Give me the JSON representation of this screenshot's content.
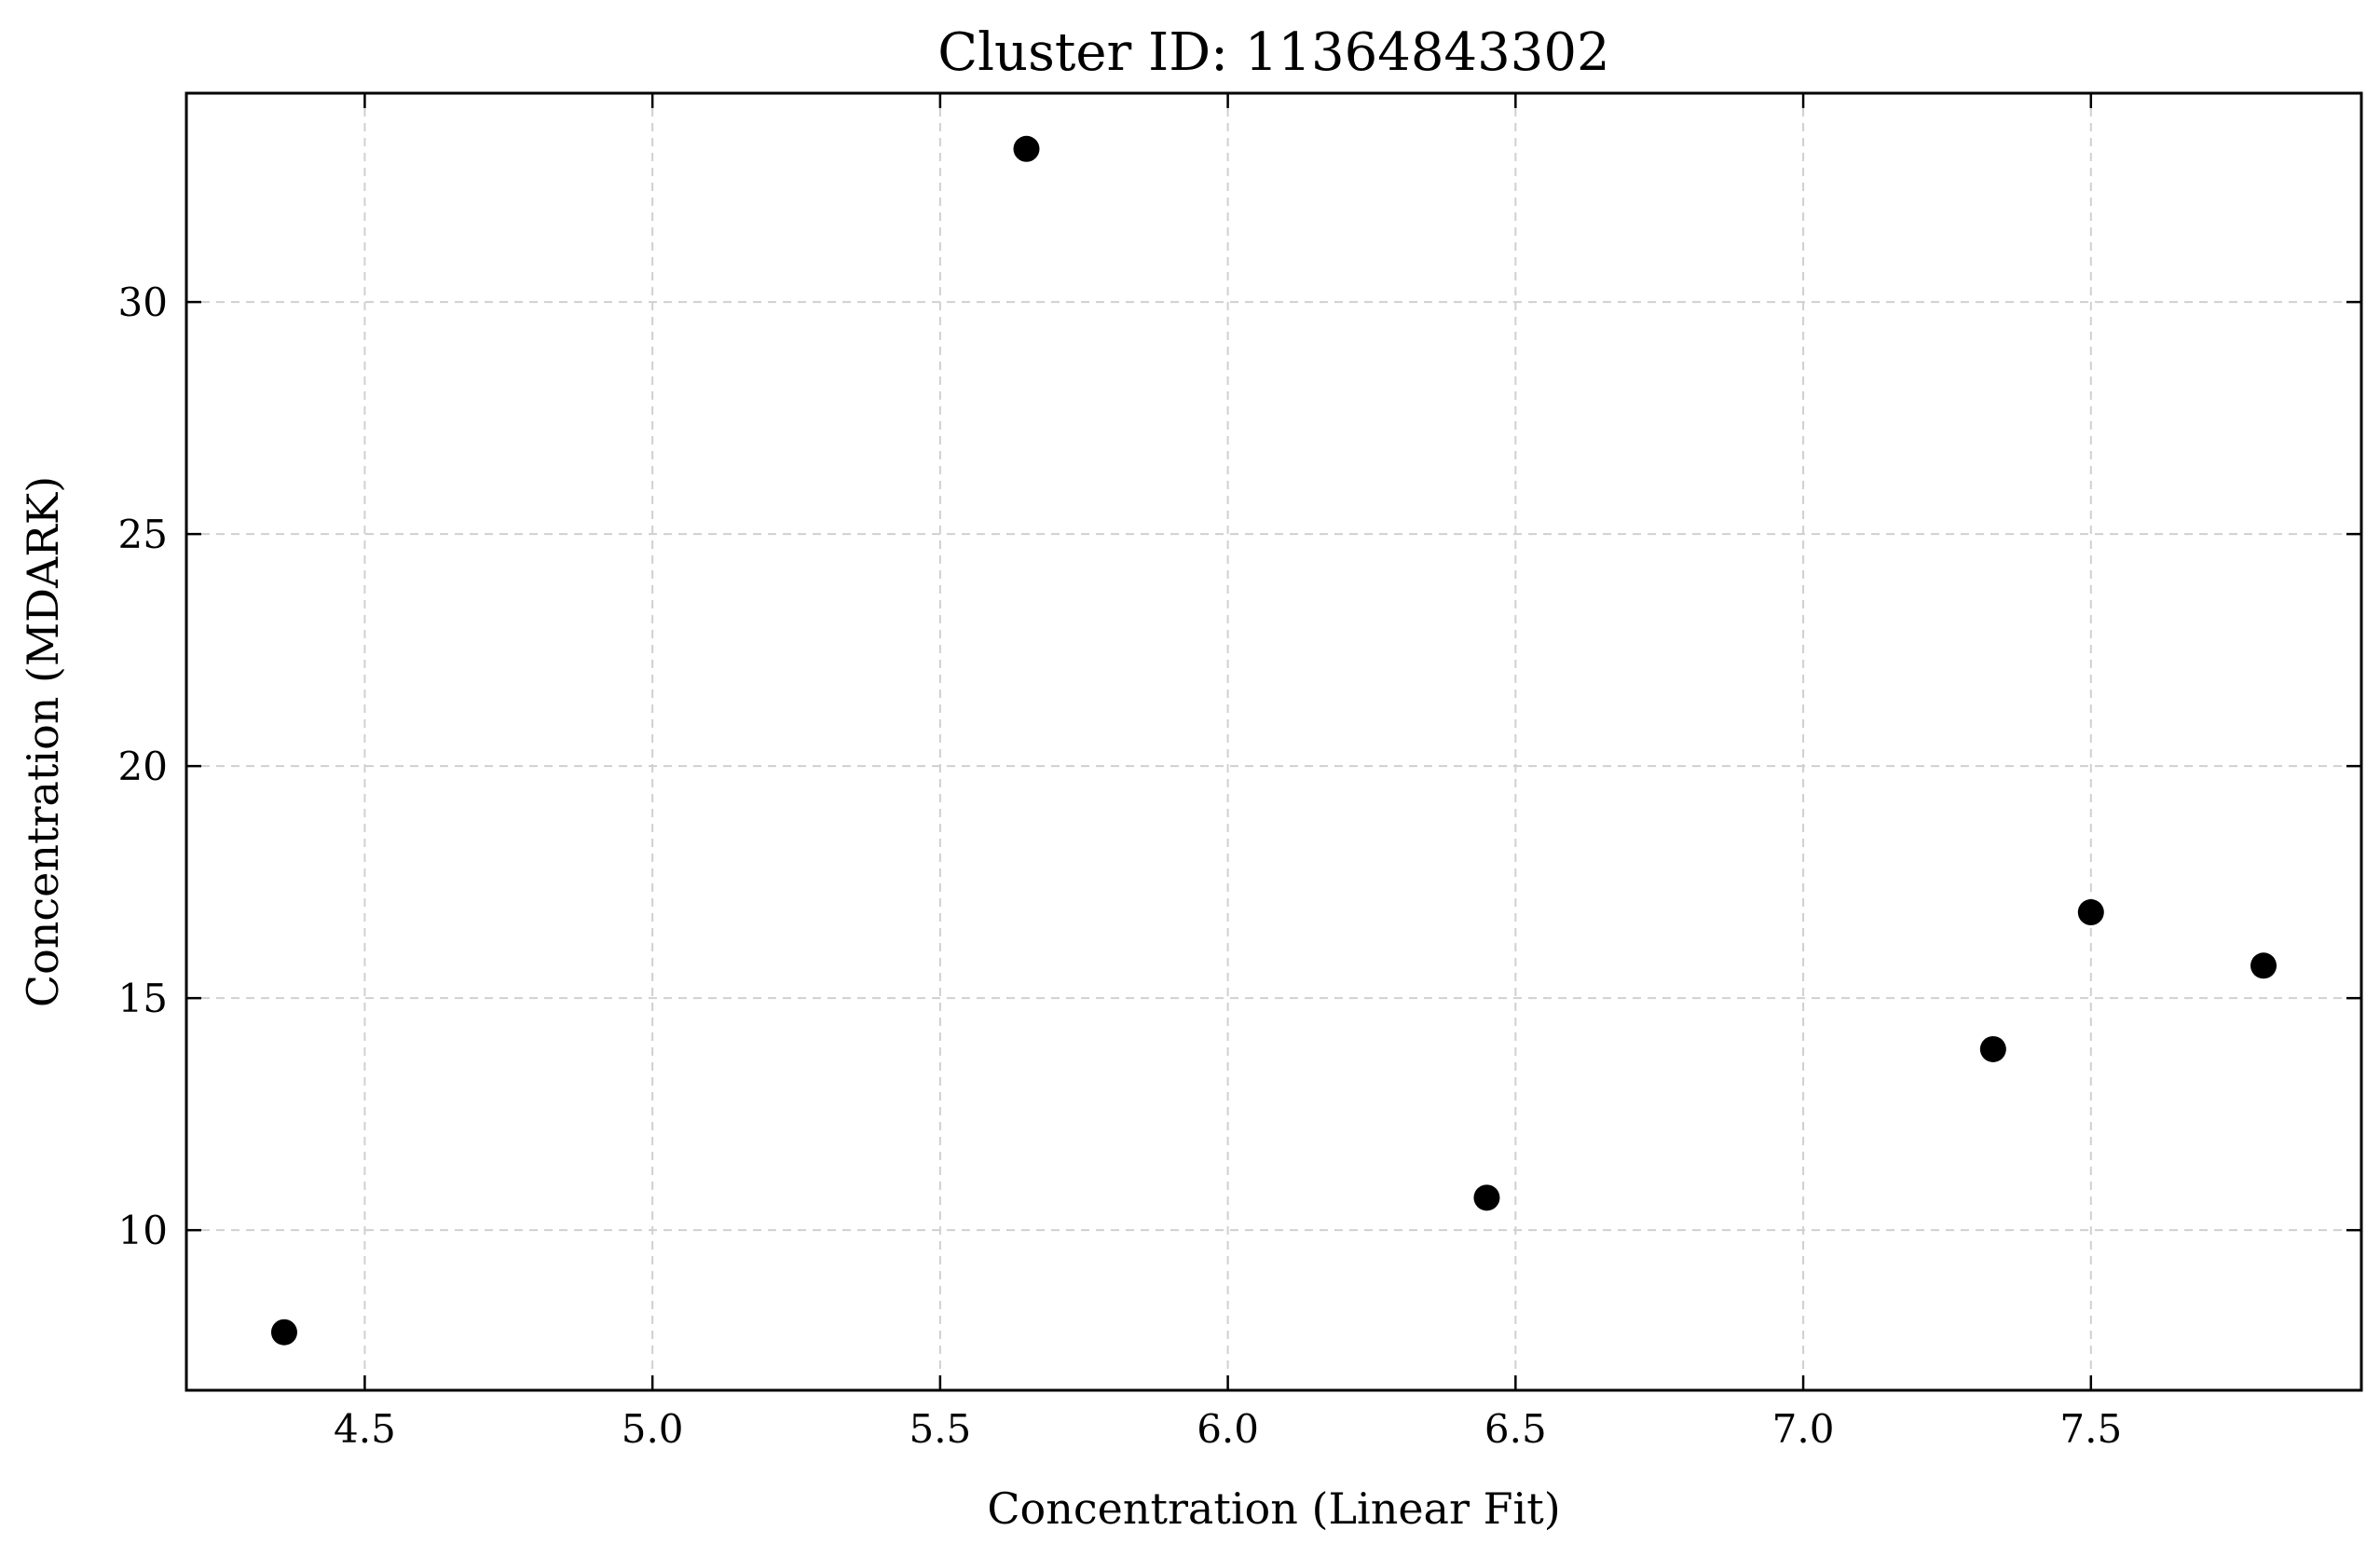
{
  "chart_data": {
    "type": "scatter",
    "title": "Cluster ID: 11364843302",
    "xlabel": "Concentration (Linear Fit)",
    "ylabel": "Concentration (MDARK)",
    "xlim": [
      4.19,
      7.97
    ],
    "ylim": [
      6.55,
      34.5
    ],
    "xticks": [
      4.5,
      5.0,
      5.5,
      6.0,
      6.5,
      7.0,
      7.5
    ],
    "xtick_labels": [
      "4.5",
      "5.0",
      "5.5",
      "6.0",
      "6.5",
      "7.0",
      "7.5"
    ],
    "yticks": [
      10,
      15,
      20,
      25,
      30
    ],
    "ytick_labels": [
      "10",
      "15",
      "20",
      "25",
      "30"
    ],
    "grid": true,
    "legend": "none",
    "marker_color": "#000000",
    "points": [
      {
        "x": 4.36,
        "y": 7.8
      },
      {
        "x": 5.65,
        "y": 33.3
      },
      {
        "x": 6.45,
        "y": 10.7
      },
      {
        "x": 7.33,
        "y": 13.9
      },
      {
        "x": 7.5,
        "y": 16.85
      },
      {
        "x": 7.8,
        "y": 15.7
      }
    ]
  }
}
